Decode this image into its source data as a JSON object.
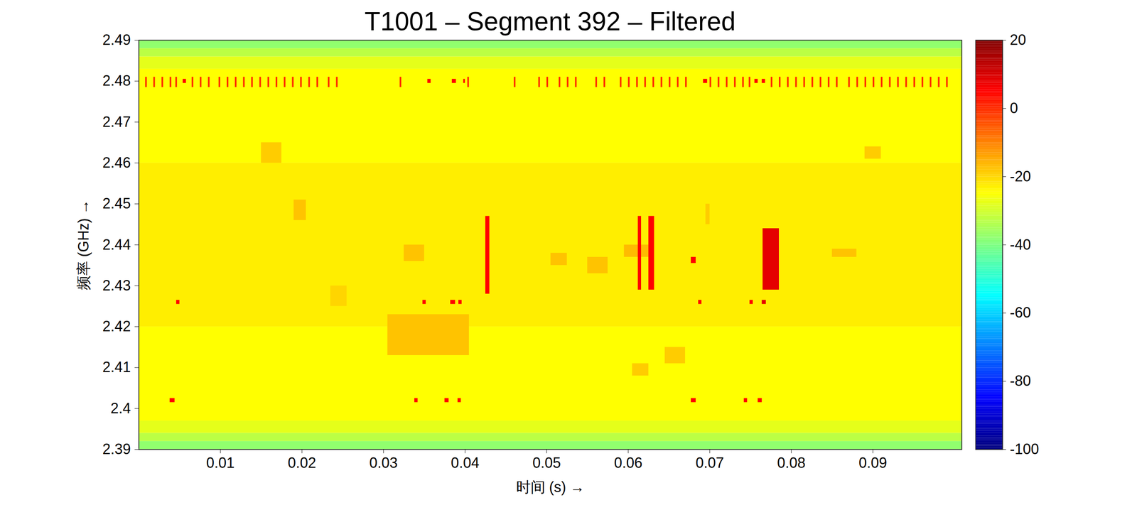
{
  "chart_data": {
    "type": "heatmap",
    "title": "T1001 – Segment 392 – Filtered",
    "x_label": "时间 (s)",
    "y_label": "频率 (GHz)",
    "xlim": [
      0,
      0.1009
    ],
    "xticks": [
      0.01,
      0.02,
      0.03,
      0.04,
      0.05,
      0.06,
      0.07,
      0.08,
      0.09
    ],
    "ylim": [
      2.39,
      2.49
    ],
    "yticks": [
      2.39,
      2.4,
      2.41,
      2.42,
      2.43,
      2.44,
      2.45,
      2.46,
      2.47,
      2.48,
      2.49
    ],
    "colorbar": {
      "range": [
        -100,
        20
      ],
      "ticks": [
        -100,
        -80,
        -60,
        -40,
        -20,
        0,
        20
      ]
    },
    "cells": [
      {
        "x0": 0,
        "x1": 0.1009,
        "y0": 2.39,
        "y1": 2.392,
        "value": -38
      },
      {
        "x0": 0,
        "x1": 0.1009,
        "y0": 2.392,
        "y1": 2.394,
        "value": -33
      },
      {
        "x0": 0,
        "x1": 0.1009,
        "y0": 2.394,
        "y1": 2.397,
        "value": -28
      },
      {
        "x0": 0,
        "x1": 0.1009,
        "y0": 2.397,
        "y1": 2.42,
        "value": -25
      },
      {
        "x0": 0,
        "x1": 0.1009,
        "y0": 2.42,
        "y1": 2.46,
        "value": -23
      },
      {
        "x0": 0,
        "x1": 0.1009,
        "y0": 2.46,
        "y1": 2.483,
        "value": -25
      },
      {
        "x0": 0,
        "x1": 0.1009,
        "y0": 2.483,
        "y1": 2.486,
        "value": -28
      },
      {
        "x0": 0,
        "x1": 0.1009,
        "y0": 2.486,
        "y1": 2.488,
        "value": -33
      },
      {
        "x0": 0,
        "x1": 0.1009,
        "y0": 2.488,
        "y1": 2.49,
        "value": -38
      },
      {
        "x0": 0.0305,
        "x1": 0.0405,
        "y0": 2.413,
        "y1": 2.423,
        "value": -18
      },
      {
        "x0": 0.0325,
        "x1": 0.035,
        "y0": 2.436,
        "y1": 2.44,
        "value": -18
      },
      {
        "x0": 0.019,
        "x1": 0.0205,
        "y0": 2.446,
        "y1": 2.451,
        "value": -18
      },
      {
        "x0": 0.015,
        "x1": 0.0175,
        "y0": 2.46,
        "y1": 2.465,
        "value": -19
      },
      {
        "x0": 0.0505,
        "x1": 0.0525,
        "y0": 2.435,
        "y1": 2.438,
        "value": -18
      },
      {
        "x0": 0.055,
        "x1": 0.0575,
        "y0": 2.433,
        "y1": 2.437,
        "value": -18
      },
      {
        "x0": 0.0595,
        "x1": 0.0625,
        "y0": 2.437,
        "y1": 2.44,
        "value": -17
      },
      {
        "x0": 0.0645,
        "x1": 0.067,
        "y0": 2.411,
        "y1": 2.415,
        "value": -19
      },
      {
        "x0": 0.0605,
        "x1": 0.0625,
        "y0": 2.408,
        "y1": 2.411,
        "value": -19
      },
      {
        "x0": 0.085,
        "x1": 0.088,
        "y0": 2.437,
        "y1": 2.439,
        "value": -18
      },
      {
        "x0": 0.0695,
        "x1": 0.07,
        "y0": 2.445,
        "y1": 2.45,
        "value": -19
      },
      {
        "x0": 0.089,
        "x1": 0.091,
        "y0": 2.461,
        "y1": 2.464,
        "value": -19
      },
      {
        "x0": 0.0235,
        "x1": 0.0255,
        "y0": 2.425,
        "y1": 2.43,
        "value": -20
      },
      {
        "x0": 0.0425,
        "x1": 0.043,
        "y0": 2.428,
        "y1": 2.447,
        "value": 5
      },
      {
        "x0": 0.0612,
        "x1": 0.0616,
        "y0": 2.429,
        "y1": 2.447,
        "value": 5
      },
      {
        "x0": 0.0625,
        "x1": 0.0632,
        "y0": 2.429,
        "y1": 2.447,
        "value": 5
      },
      {
        "x0": 0.0765,
        "x1": 0.0785,
        "y0": 2.429,
        "y1": 2.444,
        "value": 8
      },
      {
        "x0": 0.0677,
        "x1": 0.0683,
        "y0": 2.4355,
        "y1": 2.437,
        "value": 5
      },
      {
        "x0": 0.0038,
        "x1": 0.0044,
        "y0": 2.4015,
        "y1": 2.4025,
        "value": 5
      },
      {
        "x0": 0.0046,
        "x1": 0.005,
        "y0": 2.4255,
        "y1": 2.4265,
        "value": 5
      },
      {
        "x0": 0.0338,
        "x1": 0.0342,
        "y0": 2.4015,
        "y1": 2.4025,
        "value": 5
      },
      {
        "x0": 0.0348,
        "x1": 0.0352,
        "y0": 2.4255,
        "y1": 2.4265,
        "value": 5
      },
      {
        "x0": 0.0375,
        "x1": 0.038,
        "y0": 2.4015,
        "y1": 2.4025,
        "value": 5
      },
      {
        "x0": 0.0382,
        "x1": 0.0388,
        "y0": 2.4255,
        "y1": 2.4265,
        "value": 5
      },
      {
        "x0": 0.0391,
        "x1": 0.0395,
        "y0": 2.4015,
        "y1": 2.4025,
        "value": 5
      },
      {
        "x0": 0.0392,
        "x1": 0.0396,
        "y0": 2.4255,
        "y1": 2.4265,
        "value": 5
      },
      {
        "x0": 0.0677,
        "x1": 0.0683,
        "y0": 2.4015,
        "y1": 2.4025,
        "value": 5
      },
      {
        "x0": 0.0686,
        "x1": 0.069,
        "y0": 2.4255,
        "y1": 2.4265,
        "value": 5
      },
      {
        "x0": 0.0742,
        "x1": 0.0746,
        "y0": 2.4015,
        "y1": 2.4025,
        "value": 5
      },
      {
        "x0": 0.0749,
        "x1": 0.0753,
        "y0": 2.4255,
        "y1": 2.4265,
        "value": 5
      },
      {
        "x0": 0.0759,
        "x1": 0.0764,
        "y0": 2.4015,
        "y1": 2.4025,
        "value": 5
      },
      {
        "x0": 0.0764,
        "x1": 0.0769,
        "y0": 2.4255,
        "y1": 2.4265,
        "value": 8
      },
      {
        "x0": 0.0008,
        "x1": 0.001,
        "y0": 2.4785,
        "y1": 2.481,
        "value": 0
      },
      {
        "x0": 0.0018,
        "x1": 0.002,
        "y0": 2.4785,
        "y1": 2.481,
        "value": 0
      },
      {
        "x0": 0.0028,
        "x1": 0.003,
        "y0": 2.4785,
        "y1": 2.481,
        "value": 0
      },
      {
        "x0": 0.0038,
        "x1": 0.004,
        "y0": 2.4785,
        "y1": 2.481,
        "value": 0
      },
      {
        "x0": 0.0045,
        "x1": 0.0047,
        "y0": 2.4785,
        "y1": 2.481,
        "value": 0
      },
      {
        "x0": 0.0054,
        "x1": 0.0058,
        "y0": 2.4795,
        "y1": 2.4805,
        "value": 5
      },
      {
        "x0": 0.0065,
        "x1": 0.0067,
        "y0": 2.4785,
        "y1": 2.481,
        "value": 0
      },
      {
        "x0": 0.0075,
        "x1": 0.0077,
        "y0": 2.4785,
        "y1": 2.481,
        "value": 0
      },
      {
        "x0": 0.0085,
        "x1": 0.0087,
        "y0": 2.4785,
        "y1": 2.481,
        "value": 0
      },
      {
        "x0": 0.0098,
        "x1": 0.01,
        "y0": 2.4785,
        "y1": 2.481,
        "value": 0
      },
      {
        "x0": 0.0108,
        "x1": 0.011,
        "y0": 2.4785,
        "y1": 2.481,
        "value": 0
      },
      {
        "x0": 0.0118,
        "x1": 0.012,
        "y0": 2.4785,
        "y1": 2.481,
        "value": 0
      },
      {
        "x0": 0.0128,
        "x1": 0.013,
        "y0": 2.4785,
        "y1": 2.481,
        "value": 0
      },
      {
        "x0": 0.0138,
        "x1": 0.014,
        "y0": 2.4785,
        "y1": 2.481,
        "value": 0
      },
      {
        "x0": 0.0148,
        "x1": 0.015,
        "y0": 2.4785,
        "y1": 2.481,
        "value": 0
      },
      {
        "x0": 0.0158,
        "x1": 0.016,
        "y0": 2.4785,
        "y1": 2.481,
        "value": 0
      },
      {
        "x0": 0.0168,
        "x1": 0.017,
        "y0": 2.4785,
        "y1": 2.481,
        "value": 0
      },
      {
        "x0": 0.0178,
        "x1": 0.018,
        "y0": 2.4785,
        "y1": 2.481,
        "value": 0
      },
      {
        "x0": 0.0188,
        "x1": 0.019,
        "y0": 2.4785,
        "y1": 2.481,
        "value": 0
      },
      {
        "x0": 0.0198,
        "x1": 0.02,
        "y0": 2.4785,
        "y1": 2.481,
        "value": 0
      },
      {
        "x0": 0.0208,
        "x1": 0.021,
        "y0": 2.4785,
        "y1": 2.481,
        "value": 0
      },
      {
        "x0": 0.0218,
        "x1": 0.022,
        "y0": 2.4785,
        "y1": 2.481,
        "value": 0
      },
      {
        "x0": 0.0232,
        "x1": 0.0234,
        "y0": 2.4785,
        "y1": 2.481,
        "value": 0
      },
      {
        "x0": 0.0242,
        "x1": 0.0244,
        "y0": 2.4785,
        "y1": 2.481,
        "value": 0
      },
      {
        "x0": 0.032,
        "x1": 0.0322,
        "y0": 2.4785,
        "y1": 2.481,
        "value": 0
      },
      {
        "x0": 0.0354,
        "x1": 0.0358,
        "y0": 2.4795,
        "y1": 2.4805,
        "value": 5
      },
      {
        "x0": 0.0384,
        "x1": 0.0389,
        "y0": 2.4795,
        "y1": 2.4805,
        "value": 5
      },
      {
        "x0": 0.0398,
        "x1": 0.04,
        "y0": 2.4795,
        "y1": 2.4805,
        "value": 5
      },
      {
        "x0": 0.0403,
        "x1": 0.0405,
        "y0": 2.4785,
        "y1": 2.481,
        "value": 0
      },
      {
        "x0": 0.046,
        "x1": 0.0462,
        "y0": 2.4785,
        "y1": 2.481,
        "value": 0
      },
      {
        "x0": 0.049,
        "x1": 0.0492,
        "y0": 2.4785,
        "y1": 2.481,
        "value": 0
      },
      {
        "x0": 0.05,
        "x1": 0.0502,
        "y0": 2.4785,
        "y1": 2.481,
        "value": 0
      },
      {
        "x0": 0.0515,
        "x1": 0.0517,
        "y0": 2.4785,
        "y1": 2.481,
        "value": 0
      },
      {
        "x0": 0.0525,
        "x1": 0.0527,
        "y0": 2.4785,
        "y1": 2.481,
        "value": 0
      },
      {
        "x0": 0.0535,
        "x1": 0.0537,
        "y0": 2.4785,
        "y1": 2.481,
        "value": 0
      },
      {
        "x0": 0.056,
        "x1": 0.0562,
        "y0": 2.4785,
        "y1": 2.481,
        "value": 0
      },
      {
        "x0": 0.057,
        "x1": 0.0572,
        "y0": 2.4785,
        "y1": 2.481,
        "value": 0
      },
      {
        "x0": 0.059,
        "x1": 0.0592,
        "y0": 2.4785,
        "y1": 2.481,
        "value": 0
      },
      {
        "x0": 0.06,
        "x1": 0.0602,
        "y0": 2.4785,
        "y1": 2.481,
        "value": 0
      },
      {
        "x0": 0.061,
        "x1": 0.0612,
        "y0": 2.4785,
        "y1": 2.481,
        "value": 0
      },
      {
        "x0": 0.062,
        "x1": 0.0622,
        "y0": 2.4785,
        "y1": 2.481,
        "value": 0
      },
      {
        "x0": 0.063,
        "x1": 0.0632,
        "y0": 2.4785,
        "y1": 2.481,
        "value": 0
      },
      {
        "x0": 0.064,
        "x1": 0.0642,
        "y0": 2.4785,
        "y1": 2.481,
        "value": 0
      },
      {
        "x0": 0.065,
        "x1": 0.0652,
        "y0": 2.4785,
        "y1": 2.481,
        "value": 0
      },
      {
        "x0": 0.066,
        "x1": 0.0662,
        "y0": 2.4785,
        "y1": 2.481,
        "value": 0
      },
      {
        "x0": 0.067,
        "x1": 0.0672,
        "y0": 2.4785,
        "y1": 2.481,
        "value": 0
      },
      {
        "x0": 0.0692,
        "x1": 0.0697,
        "y0": 2.4795,
        "y1": 2.4805,
        "value": 5
      },
      {
        "x0": 0.07,
        "x1": 0.0702,
        "y0": 2.4785,
        "y1": 2.481,
        "value": 0
      },
      {
        "x0": 0.071,
        "x1": 0.0712,
        "y0": 2.4785,
        "y1": 2.481,
        "value": 0
      },
      {
        "x0": 0.072,
        "x1": 0.0722,
        "y0": 2.4785,
        "y1": 2.481,
        "value": 0
      },
      {
        "x0": 0.073,
        "x1": 0.0732,
        "y0": 2.4785,
        "y1": 2.481,
        "value": 0
      },
      {
        "x0": 0.074,
        "x1": 0.0742,
        "y0": 2.4785,
        "y1": 2.481,
        "value": 0
      },
      {
        "x0": 0.0748,
        "x1": 0.075,
        "y0": 2.4785,
        "y1": 2.481,
        "value": 0
      },
      {
        "x0": 0.0755,
        "x1": 0.0759,
        "y0": 2.4795,
        "y1": 2.4805,
        "value": 5
      },
      {
        "x0": 0.0764,
        "x1": 0.0768,
        "y0": 2.4795,
        "y1": 2.4805,
        "value": 5
      },
      {
        "x0": 0.0775,
        "x1": 0.0777,
        "y0": 2.4785,
        "y1": 2.481,
        "value": 0
      },
      {
        "x0": 0.0785,
        "x1": 0.0787,
        "y0": 2.4785,
        "y1": 2.481,
        "value": 0
      },
      {
        "x0": 0.0795,
        "x1": 0.0797,
        "y0": 2.4785,
        "y1": 2.481,
        "value": 0
      },
      {
        "x0": 0.0805,
        "x1": 0.0807,
        "y0": 2.4785,
        "y1": 2.481,
        "value": 0
      },
      {
        "x0": 0.0815,
        "x1": 0.0817,
        "y0": 2.4785,
        "y1": 2.481,
        "value": 0
      },
      {
        "x0": 0.0825,
        "x1": 0.0827,
        "y0": 2.4785,
        "y1": 2.481,
        "value": 0
      },
      {
        "x0": 0.0835,
        "x1": 0.0837,
        "y0": 2.4785,
        "y1": 2.481,
        "value": 0
      },
      {
        "x0": 0.0845,
        "x1": 0.0847,
        "y0": 2.4785,
        "y1": 2.481,
        "value": 0
      },
      {
        "x0": 0.0855,
        "x1": 0.0857,
        "y0": 2.4785,
        "y1": 2.481,
        "value": 0
      },
      {
        "x0": 0.087,
        "x1": 0.0872,
        "y0": 2.4785,
        "y1": 2.481,
        "value": 0
      },
      {
        "x0": 0.088,
        "x1": 0.0882,
        "y0": 2.4785,
        "y1": 2.481,
        "value": 0
      },
      {
        "x0": 0.089,
        "x1": 0.0892,
        "y0": 2.4785,
        "y1": 2.481,
        "value": 0
      },
      {
        "x0": 0.09,
        "x1": 0.0902,
        "y0": 2.4785,
        "y1": 2.481,
        "value": 0
      },
      {
        "x0": 0.091,
        "x1": 0.0912,
        "y0": 2.4785,
        "y1": 2.481,
        "value": 0
      },
      {
        "x0": 0.092,
        "x1": 0.0922,
        "y0": 2.4785,
        "y1": 2.481,
        "value": 0
      },
      {
        "x0": 0.093,
        "x1": 0.0932,
        "y0": 2.4785,
        "y1": 2.481,
        "value": 0
      },
      {
        "x0": 0.094,
        "x1": 0.0942,
        "y0": 2.4785,
        "y1": 2.481,
        "value": 0
      },
      {
        "x0": 0.095,
        "x1": 0.0952,
        "y0": 2.4785,
        "y1": 2.481,
        "value": 0
      },
      {
        "x0": 0.096,
        "x1": 0.0962,
        "y0": 2.4785,
        "y1": 2.481,
        "value": 0
      },
      {
        "x0": 0.097,
        "x1": 0.0972,
        "y0": 2.4785,
        "y1": 2.481,
        "value": 0
      },
      {
        "x0": 0.098,
        "x1": 0.0982,
        "y0": 2.4785,
        "y1": 2.481,
        "value": 0
      },
      {
        "x0": 0.099,
        "x1": 0.0992,
        "y0": 2.4785,
        "y1": 2.481,
        "value": 0
      }
    ]
  }
}
